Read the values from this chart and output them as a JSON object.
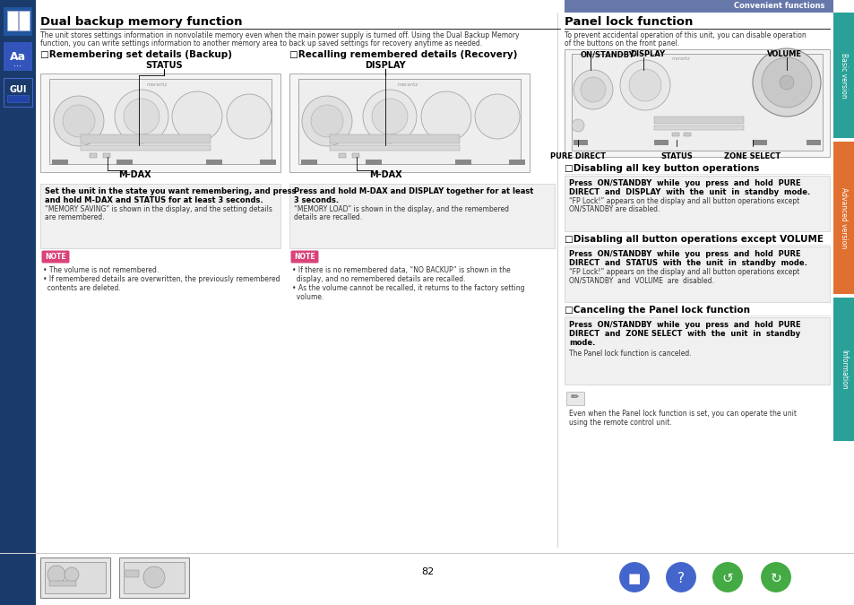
{
  "page_bg": "#ffffff",
  "header_bar_color": "#6b7fad",
  "header_text": "Convenient functions",
  "left_sidebar_color": "#1a3a6b",
  "left_sidebar_icon1_bg": "#2a4a8b",
  "left_sidebar_icon2_bg": "#3a5aab",
  "page_number": "82",
  "section1_title": "Dual backup memory function",
  "section1_intro1": "The unit stores settings information in nonvolatile memory even when the main power supply is turned off. Using the Dual Backup Memory",
  "section1_intro2": "function, you can write settings information to another memory area to back up saved settings for recovery anytime as needed.",
  "sub1_title": "□Remembering set details (Backup)",
  "sub1_status_label": "STATUS",
  "sub1_mdax_label": "M-DAX",
  "sub1_box_line1": "Set the unit in the state you want remembering, and press",
  "sub1_box_line2": "and hold M-DAX and STATUS for at least 3 seconds.",
  "sub1_box_line3": "“MEMORY SAVING” is shown in the display, and the setting details",
  "sub1_box_line4": "are remembered.",
  "sub1_note1": "• The volume is not remembered.",
  "sub1_note2": "• If remembered details are overwritten, the previously remembered",
  "sub1_note3": "  contents are deleted.",
  "sub2_title": "□Recalling remembered details (Recovery)",
  "sub2_display_label": "DISPLAY",
  "sub2_mdax_label": "M-DAX",
  "sub2_box_line1": "Press and hold M-DAX and DISPLAY together for at least",
  "sub2_box_line2": "3 seconds.",
  "sub2_box_line3": "“MEMORY LOAD” is shown in the display, and the remembered",
  "sub2_box_line4": "details are recalled.",
  "sub2_note1": "• If there is no remembered data, “NO BACKUP” is shown in the",
  "sub2_note2": "  display, and no remembered details are recalled.",
  "sub2_note3": "• As the volume cannot be recalled, it returns to the factory setting",
  "sub2_note4": "  volume.",
  "section2_title": "Panel lock function",
  "section2_intro1": "To prevent accidental operation of this unit, you can disable operation",
  "section2_intro2": "of the buttons on the front panel.",
  "panel_label_on": "ON/STANDBY",
  "panel_label_display": "DISPLAY",
  "panel_label_volume": "VOLUME",
  "panel_label_pure": "PURE DIRECT",
  "panel_label_status": "STATUS",
  "panel_label_zone": "ZONE SELECT",
  "sub3_title": "□Disabling all key button operations",
  "sub4_title": "□Disabling all button operations except VOLUME",
  "sub5_title": "□Canceling the Panel lock function",
  "note_label_bg": "#d9437a",
  "tab_basic_color": "#2aa198",
  "tab_advanced_color": "#e07030",
  "tab_info_color": "#2aa198"
}
